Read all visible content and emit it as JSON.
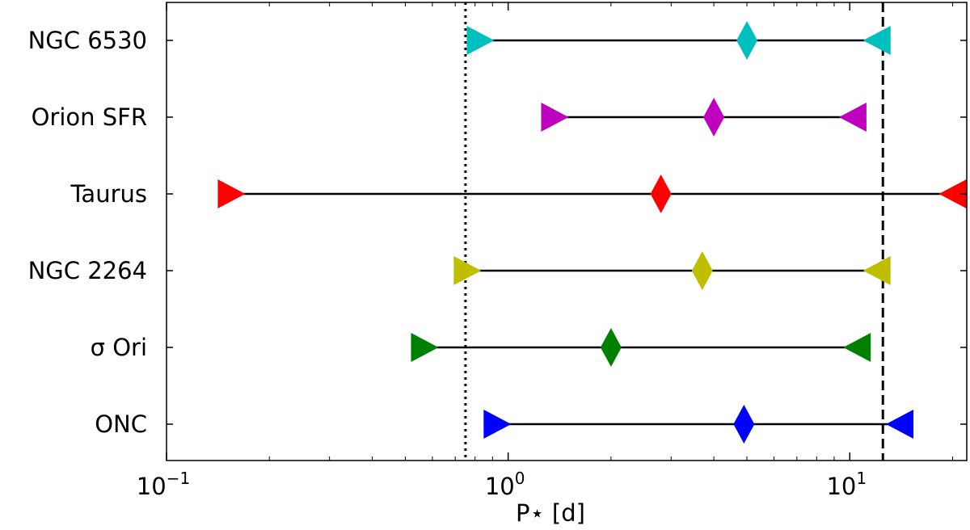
{
  "chart_data": {
    "type": "range",
    "title": "",
    "xlabel": "P⋆ [d]",
    "ylabel": "",
    "xscale": "log",
    "xlim": [
      0.1,
      22
    ],
    "x_ticks": [
      {
        "value": 0.1,
        "base": "10",
        "exp": "−1"
      },
      {
        "value": 1,
        "base": "10",
        "exp": "0"
      },
      {
        "value": 10,
        "base": "10",
        "exp": "1"
      }
    ],
    "categories": [
      "NGC 6530",
      "Orion SFR",
      "Taurus",
      "NGC 2264",
      "σ Ori",
      "ONC"
    ],
    "series": [
      {
        "category": "NGC 6530",
        "color": "#00bfbf",
        "min": 0.83,
        "median": 5.0,
        "max": 12.0
      },
      {
        "category": "Orion SFR",
        "color": "#bf00bf",
        "min": 1.37,
        "median": 4.0,
        "max": 10.2
      },
      {
        "category": "Taurus",
        "color": "#ff0000",
        "min": 0.155,
        "median": 2.8,
        "max": 20.0
      },
      {
        "category": "NGC 2264",
        "color": "#bfbf00",
        "min": 0.76,
        "median": 3.7,
        "max": 12.0
      },
      {
        "category": "σ Ori",
        "color": "#008000",
        "min": 0.57,
        "median": 2.0,
        "max": 10.5
      },
      {
        "category": "ONC",
        "color": "#0000ff",
        "min": 0.93,
        "median": 4.9,
        "max": 14.0
      }
    ],
    "reference_lines": [
      {
        "x": 0.75,
        "style": "dotted"
      },
      {
        "x": 12.5,
        "style": "dashed"
      }
    ],
    "grid": false,
    "legend": "none"
  }
}
